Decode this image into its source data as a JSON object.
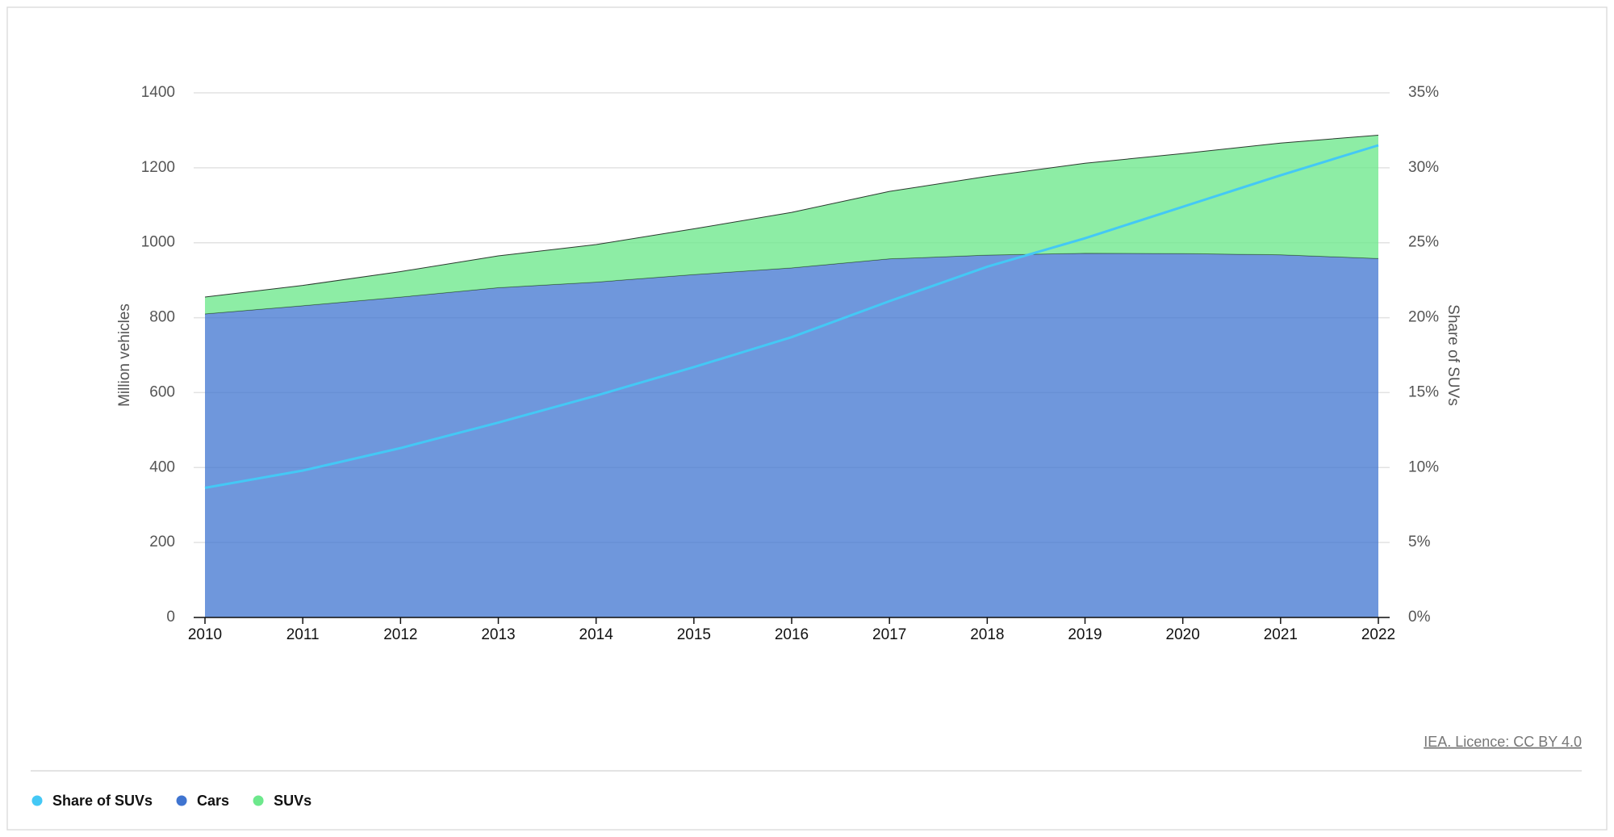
{
  "chart_data": {
    "type": "area",
    "categories": [
      "2010",
      "2011",
      "2012",
      "2013",
      "2014",
      "2015",
      "2016",
      "2017",
      "2018",
      "2019",
      "2020",
      "2021",
      "2022"
    ],
    "series": [
      {
        "name": "Share of SUVs",
        "type": "line",
        "axis": "y2",
        "color": "#44c8f5",
        "values": [
          8.65,
          9.8,
          11.3,
          13.0,
          14.8,
          16.7,
          18.7,
          21.1,
          23.4,
          25.3,
          27.4,
          29.5,
          31.5
        ]
      },
      {
        "name": "Cars",
        "type": "area",
        "color": "#3f74d0",
        "values": [
          810,
          832,
          855,
          880,
          895,
          915,
          933,
          957,
          967,
          972,
          971,
          968,
          958
        ]
      },
      {
        "name": "SUVs",
        "type": "area",
        "color": "#6de88c",
        "values": [
          45,
          54,
          68,
          85,
          100,
          122,
          148,
          180,
          210,
          240,
          267,
          298,
          329
        ]
      }
    ],
    "stacked": true,
    "y_label": "Million vehicles",
    "y2_label": "Share of SUVs",
    "ylim": [
      0,
      1400
    ],
    "yticks": [
      0,
      200,
      400,
      600,
      800,
      1000,
      1200,
      1400
    ],
    "y2lim": [
      0,
      35
    ],
    "y2ticks": [
      {
        "value": 0,
        "label": "0%"
      },
      {
        "value": 5,
        "label": "5%"
      },
      {
        "value": 10,
        "label": "10%"
      },
      {
        "value": 15,
        "label": "15%"
      },
      {
        "value": 20,
        "label": "20%"
      },
      {
        "value": 25,
        "label": "25%"
      },
      {
        "value": 30,
        "label": "30%"
      },
      {
        "value": 35,
        "label": "35%"
      }
    ],
    "grid": true,
    "legend": "bottom-left",
    "source": "IEA. Licence: CC BY 4.0"
  }
}
